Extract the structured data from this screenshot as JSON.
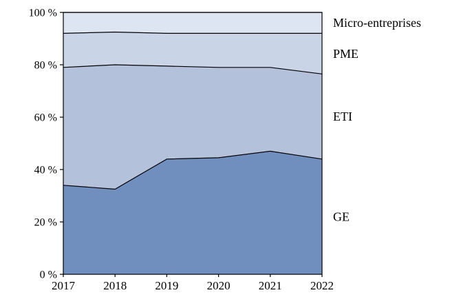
{
  "chart_data": {
    "type": "area",
    "stacked": true,
    "percent": true,
    "title": "",
    "xlabel": "",
    "ylabel": "",
    "x_labels": [
      "2017",
      "2018",
      "2019",
      "2020",
      "2021",
      "2022"
    ],
    "series": [
      {
        "name": "GE",
        "values": [
          34,
          32.5,
          44,
          44.5,
          47,
          44
        ],
        "color": "#708fbf"
      },
      {
        "name": "ETI",
        "values": [
          45,
          47.5,
          35.5,
          34.5,
          32,
          32.5
        ],
        "color": "#b4c1db"
      },
      {
        "name": "PME",
        "values": [
          13,
          12.5,
          12.5,
          13,
          13,
          15.5
        ],
        "color": "#cad4e7"
      },
      {
        "name": "Micro-entreprises",
        "values": [
          8,
          7.5,
          8,
          8,
          8,
          8
        ],
        "color": "#dee5f2"
      }
    ],
    "ylim": [
      0,
      100
    ],
    "ytick_values": [
      0,
      20,
      40,
      60,
      80,
      100
    ],
    "ytick_labels": [
      "0 %",
      "20 %",
      "40 %",
      "60 %",
      "80 %",
      "100 %"
    ],
    "grid": false,
    "legend_position": "right-inline",
    "boundary_line_color": "#000000",
    "axis_color": "#000000",
    "background_color": "#ffffff"
  }
}
